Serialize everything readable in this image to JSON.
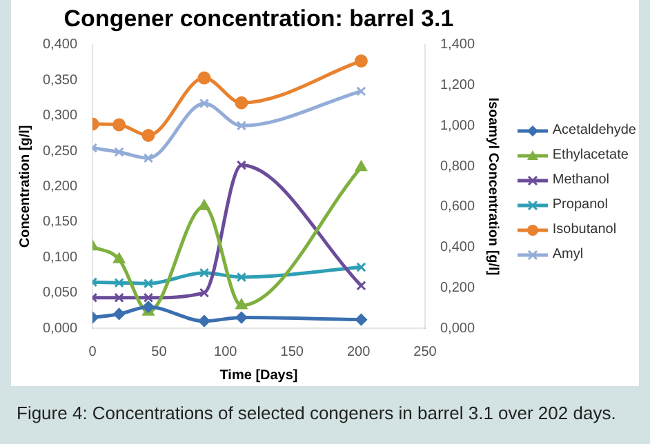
{
  "chart_data": {
    "type": "line",
    "title": "Congener concentration: barrel 3.1",
    "xlabel": "Time [Days]",
    "ylabel": "Concentration [g/l]",
    "y2label": "Isoamyl Concentration [g/l]",
    "annotations": [
      "Figure 4: Concentrations of selected congeners in barrel 3.1 over 202 days."
    ],
    "x": [
      0,
      20,
      42,
      84,
      112,
      202
    ],
    "xlim": [
      0,
      250
    ],
    "xticks": [
      0,
      50,
      100,
      150,
      200,
      250
    ],
    "ylim": [
      0,
      0.4
    ],
    "yticks": [
      {
        "value": 0,
        "label": "0,000"
      },
      {
        "value": 0.05,
        "label": "0,050"
      },
      {
        "value": 0.1,
        "label": "0,100"
      },
      {
        "value": 0.15,
        "label": "0,150"
      },
      {
        "value": 0.2,
        "label": "0,200"
      },
      {
        "value": 0.25,
        "label": "0,250"
      },
      {
        "value": 0.3,
        "label": "0,300"
      },
      {
        "value": 0.35,
        "label": "0,350"
      },
      {
        "value": 0.4,
        "label": "0,400"
      }
    ],
    "y2lim": [
      0,
      1.4
    ],
    "y2ticks": [
      {
        "value": 0,
        "label": "0,000"
      },
      {
        "value": 0.2,
        "label": "0,200"
      },
      {
        "value": 0.4,
        "label": "0,400"
      },
      {
        "value": 0.6,
        "label": "0,600"
      },
      {
        "value": 0.8,
        "label": "0,800"
      },
      {
        "value": 1.0,
        "label": "1,000"
      },
      {
        "value": 1.2,
        "label": "1,200"
      },
      {
        "value": 1.4,
        "label": "1,400"
      }
    ],
    "grid": false,
    "legend": "right",
    "series": [
      {
        "name": "Acetaldehyde",
        "color": "#3a6fb0",
        "marker": "diamond",
        "values": [
          0.015,
          0.02,
          0.03,
          0.01,
          0.015,
          0.012
        ]
      },
      {
        "name": "Ethylacetate",
        "color": "#7fb03f",
        "marker": "triangle",
        "values": [
          0.115,
          0.097,
          0.023,
          0.172,
          0.032,
          0.227
        ]
      },
      {
        "name": "Methanol",
        "color": "#6b4c9a",
        "marker": "cross",
        "values": [
          0.043,
          0.043,
          0.043,
          0.05,
          0.23,
          0.06
        ]
      },
      {
        "name": "Propanol",
        "color": "#2e9fb5",
        "marker": "cross",
        "values": [
          0.065,
          0.064,
          0.063,
          0.078,
          0.072,
          0.086
        ]
      },
      {
        "name": "Isobutanol",
        "color": "#e8822f",
        "marker": "circle",
        "values": [
          0.288,
          0.287,
          0.272,
          0.353,
          0.318,
          0.377
        ]
      },
      {
        "name": "Amyl",
        "color": "#93acd8",
        "marker": "cross",
        "axis": "y2",
        "values": [
          0.89,
          0.87,
          0.84,
          1.11,
          1.0,
          1.17
        ]
      }
    ]
  }
}
